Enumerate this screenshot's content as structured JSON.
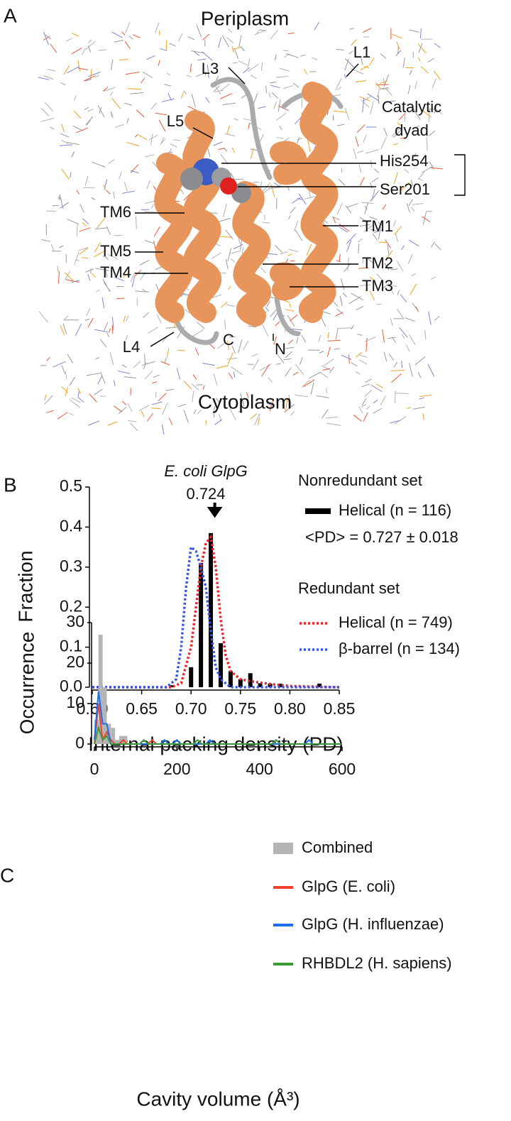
{
  "panel_a": {
    "panel_label": "A",
    "top_label": "Periplasm",
    "bottom_label": "Cytoplasm",
    "labels": {
      "l1": "L1",
      "l3": "L3",
      "l5": "L5",
      "dyad_line1": "Catalytic",
      "dyad_line2": "dyad",
      "his": "His254",
      "ser": "Ser201",
      "tm6": "TM6",
      "tm5": "TM5",
      "tm4": "TM4",
      "tm1": "TM1",
      "tm2": "TM2",
      "tm3": "TM3",
      "l4": "L4",
      "c_term": "C",
      "n_term": "N"
    }
  },
  "chart_data": [
    {
      "type": "bar",
      "panel_label": "B",
      "x_label": "Internal packing density (PD)",
      "y_label": "Fraction",
      "xlim": [
        0.6,
        0.85
      ],
      "xticks": [
        {
          "value": 0.6,
          "label": "0.60"
        },
        {
          "value": 0.65,
          "label": "0.65"
        },
        {
          "value": 0.7,
          "label": "0.70"
        },
        {
          "value": 0.75,
          "label": "0.75"
        },
        {
          "value": 0.8,
          "label": "0.80"
        },
        {
          "value": 0.85,
          "label": "0.85"
        }
      ],
      "ylim": [
        0,
        0.5
      ],
      "yticks": [
        {
          "value": 0,
          "label": "0.0"
        },
        0.1,
        0.2,
        0.3,
        0.4,
        0.5
      ],
      "annotation": {
        "line1": "E. coli GlpG",
        "line2": "0.724",
        "x": 0.724
      },
      "legend_headings": [
        "Nonredundant set",
        "Redundant set"
      ],
      "statistic": "<PD> = 0.727 ± 0.018",
      "series": [
        {
          "name": "Helical (n = 116)",
          "color": "#000000",
          "style": "bar",
          "x": [
            0.68,
            0.7,
            0.71,
            0.72,
            0.73,
            0.74,
            0.75,
            0.76,
            0.77,
            0.78,
            0.79,
            0.83
          ],
          "values": [
            0.005,
            0.05,
            0.31,
            0.385,
            0.11,
            0.04,
            0.02,
            0.035,
            0.01,
            0.009,
            0.009,
            0.009
          ]
        },
        {
          "name": "Helical  (n = 749)",
          "color": "#e8262b",
          "style": "dotted",
          "x": [
            0.6,
            0.68,
            0.69,
            0.7,
            0.705,
            0.71,
            0.715,
            0.72,
            0.725,
            0.73,
            0.735,
            0.74,
            0.75,
            0.76,
            0.78,
            0.8,
            0.85
          ],
          "values": [
            0,
            0,
            0.01,
            0.1,
            0.2,
            0.3,
            0.36,
            0.375,
            0.3,
            0.17,
            0.08,
            0.04,
            0.02,
            0.015,
            0.008,
            0.003,
            0
          ]
        },
        {
          "name": "β-barrel (n = 134)",
          "color": "#3a55e8",
          "style": "dotted",
          "x": [
            0.6,
            0.675,
            0.685,
            0.69,
            0.695,
            0.7,
            0.705,
            0.71,
            0.715,
            0.72,
            0.725,
            0.73,
            0.74,
            0.85
          ],
          "values": [
            0,
            0,
            0.02,
            0.1,
            0.25,
            0.35,
            0.34,
            0.3,
            0.25,
            0.14,
            0.05,
            0.02,
            0,
            0
          ]
        }
      ]
    },
    {
      "type": "histogram",
      "panel_label": "C",
      "x_label": "Cavity volume (Å³)",
      "y_label": "Occurrence",
      "xlim": [
        0,
        600
      ],
      "xticks": [
        0,
        200,
        400,
        600
      ],
      "ylim": [
        0,
        30
      ],
      "yticks": [
        0,
        10,
        20,
        30
      ],
      "histogram": {
        "name": "Combined",
        "color": "#b4b4b4",
        "bins": [
          0,
          10,
          20,
          30,
          40,
          50,
          60,
          70,
          80
        ],
        "counts": [
          6,
          27,
          14,
          5,
          4,
          1,
          2,
          2
        ]
      },
      "series": [
        {
          "name": "GlpG (E. coli)",
          "color": "#f0412a",
          "style": "solid",
          "x": [
            0,
            10,
            20,
            30,
            40,
            50,
            60,
            70,
            80,
            130,
            140,
            150,
            600
          ],
          "values": [
            0,
            10,
            1,
            3,
            1,
            0,
            0,
            1,
            0,
            0,
            1,
            0,
            0
          ]
        },
        {
          "name": "GlpG (H. influenzae)",
          "color": "#1a6ef0",
          "style": "solid",
          "x": [
            0,
            10,
            20,
            30,
            40,
            50,
            160,
            170,
            180,
            190,
            200,
            210,
            270,
            280,
            290,
            510,
            520,
            530,
            600
          ],
          "values": [
            1,
            13,
            5,
            5,
            0,
            0,
            0,
            1,
            0,
            0,
            1,
            0,
            0,
            1,
            0,
            0,
            1,
            0,
            0
          ]
        },
        {
          "name": "RHBDL2 (H. sapiens)",
          "color": "#3a9a3a",
          "style": "solid",
          "x": [
            0,
            10,
            20,
            30,
            40,
            50,
            110,
            120,
            130,
            240,
            250,
            260,
            430,
            440,
            450,
            600
          ],
          "values": [
            0,
            4,
            1,
            2,
            0,
            0,
            0,
            1,
            0,
            0,
            1,
            0,
            0,
            1,
            0,
            0
          ]
        }
      ]
    }
  ]
}
